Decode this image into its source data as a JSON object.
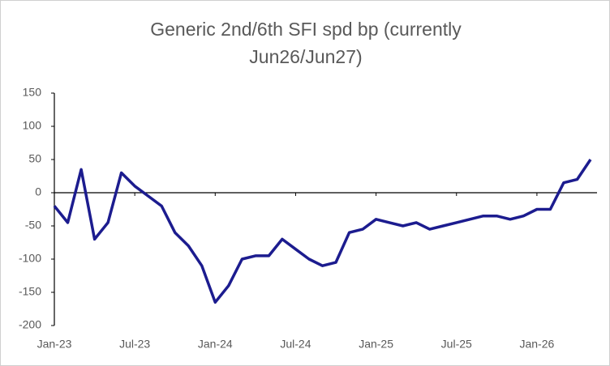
{
  "chart_data": {
    "type": "line",
    "title": "Generic 2nd/6th SFI spd bp (currently Jun26/Jun27)",
    "x": [
      "2023-01",
      "2023-02",
      "2023-03",
      "2023-04",
      "2023-05",
      "2023-06",
      "2023-07",
      "2023-08",
      "2023-09",
      "2023-10",
      "2023-11",
      "2023-12",
      "2024-01",
      "2024-02",
      "2024-03",
      "2024-04",
      "2024-05",
      "2024-06",
      "2024-07",
      "2024-08",
      "2024-09",
      "2024-10",
      "2024-11",
      "2024-12",
      "2025-01",
      "2025-02",
      "2025-03",
      "2025-04",
      "2025-05",
      "2025-06",
      "2025-07",
      "2025-08",
      "2025-09",
      "2025-10",
      "2025-11",
      "2025-12",
      "2026-01",
      "2026-02",
      "2026-03",
      "2026-04",
      "2026-05"
    ],
    "series": [
      {
        "name": "Generic 2nd/6th SFI spd bp",
        "color": "#1c1c8f",
        "values": [
          -20,
          -45,
          35,
          -70,
          -45,
          30,
          10,
          -5,
          -20,
          -60,
          -80,
          -110,
          -165,
          -140,
          -100,
          -95,
          -95,
          -70,
          -85,
          -100,
          -110,
          -105,
          -60,
          -55,
          -40,
          -45,
          -50,
          -45,
          -55,
          -50,
          -45,
          -40,
          -35,
          -35,
          -40,
          -35,
          -25,
          -25,
          15,
          20,
          50
        ]
      }
    ],
    "xlim": [
      "2023-01",
      "2026-05"
    ],
    "xticks": [
      {
        "value": "2023-01",
        "label": "Jan-23"
      },
      {
        "value": "2023-07",
        "label": "Jul-23"
      },
      {
        "value": "2024-01",
        "label": "Jan-24"
      },
      {
        "value": "2024-07",
        "label": "Jul-24"
      },
      {
        "value": "2025-01",
        "label": "Jan-25"
      },
      {
        "value": "2025-07",
        "label": "Jul-25"
      },
      {
        "value": "2026-01",
        "label": "Jan-26"
      }
    ],
    "ylim": [
      -200,
      150
    ],
    "yticks": [
      -200,
      -150,
      -100,
      -50,
      0,
      50,
      100,
      150
    ],
    "grid": false
  }
}
